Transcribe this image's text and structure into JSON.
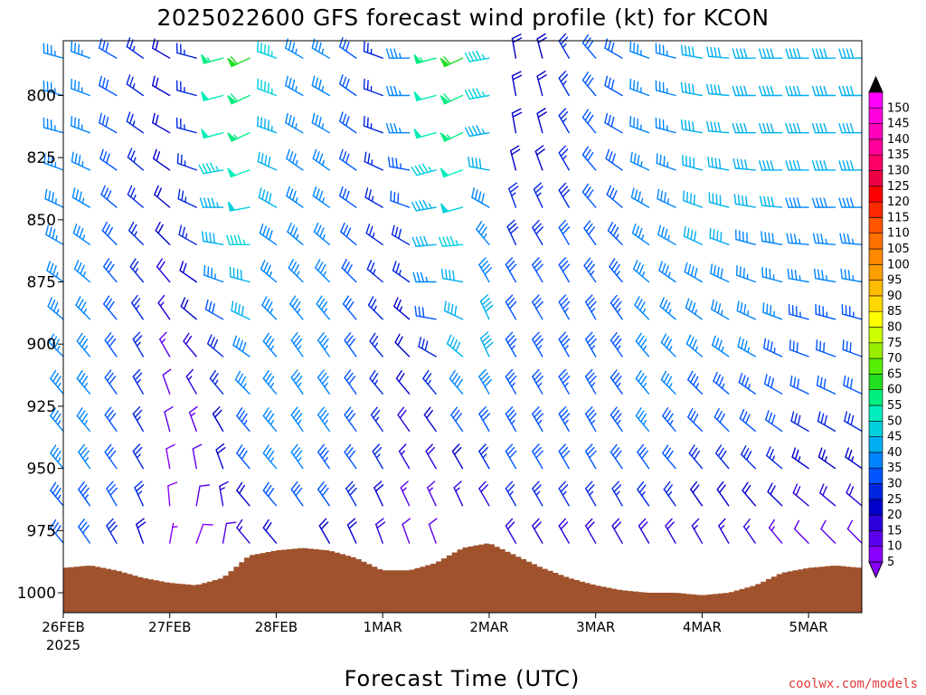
{
  "colors": {
    "terrain": "#a0522d",
    "credit": "#e23a3a"
  },
  "chart_data": {
    "type": "wind-barb-time-height",
    "title": "2025022600 GFS forecast wind profile (kt) for KCON",
    "xlabel": "Forecast Time (UTC)",
    "credit": "coolwx.com/models",
    "y_axis": {
      "label": "",
      "unit": "hPa",
      "inverted": true,
      "range": [
        778,
        1008
      ],
      "ticks": [
        "800",
        "825",
        "850",
        "875",
        "900",
        "925",
        "950",
        "975",
        "1000"
      ]
    },
    "x_axis": {
      "range_days": [
        0,
        7.5
      ],
      "ticks": [
        {
          "day": 0,
          "label": "26FEB",
          "sublabel": "2025"
        },
        {
          "day": 1,
          "label": "27FEB",
          "sublabel": ""
        },
        {
          "day": 2,
          "label": "28FEB",
          "sublabel": ""
        },
        {
          "day": 3,
          "label": "1MAR",
          "sublabel": ""
        },
        {
          "day": 4,
          "label": "2MAR",
          "sublabel": ""
        },
        {
          "day": 5,
          "label": "3MAR",
          "sublabel": ""
        },
        {
          "day": 6,
          "label": "4MAR",
          "sublabel": ""
        },
        {
          "day": 7,
          "label": "5MAR",
          "sublabel": ""
        }
      ]
    },
    "colorbar": {
      "levels": [
        "5",
        "10",
        "15",
        "20",
        "25",
        "30",
        "35",
        "40",
        "45",
        "50",
        "55",
        "60",
        "65",
        "70",
        "75",
        "80",
        "85",
        "90",
        "95",
        "100",
        "105",
        "110",
        "115",
        "120",
        "125",
        "130",
        "135",
        "140",
        "145",
        "150"
      ],
      "colors": [
        "#8800ff",
        "#5a00ee",
        "#2d00dd",
        "#0000cc",
        "#0026e0",
        "#0055ff",
        "#0084ff",
        "#00b0f0",
        "#00d0dd",
        "#00eebb",
        "#00ee80",
        "#22dd22",
        "#55ee00",
        "#99ee00",
        "#ccff00",
        "#ffff00",
        "#ffd800",
        "#ffbb00",
        "#ff9e00",
        "#ff8a00",
        "#ff7200",
        "#ff5500",
        "#ff2800",
        "#ff0000",
        "#ee0044",
        "#ff0066",
        "#ff0099",
        "#ff00bb",
        "#ff00dd",
        "#ff00ff"
      ]
    },
    "surface_pressure": {
      "unit": "hPa",
      "time_days": [
        0,
        0.25,
        0.5,
        0.75,
        1,
        1.25,
        1.5,
        1.75,
        2,
        2.25,
        2.5,
        2.75,
        3,
        3.25,
        3.5,
        3.75,
        4,
        4.25,
        4.5,
        4.75,
        5,
        5.25,
        5.5,
        5.75,
        6,
        6.25,
        6.5,
        6.75,
        7,
        7.25,
        7.5
      ],
      "values": [
        990,
        989,
        991,
        994,
        996,
        997,
        994,
        985,
        983,
        982,
        983,
        986,
        991,
        991,
        988,
        982,
        980,
        985,
        990,
        994,
        997,
        999,
        1000,
        1000,
        1001,
        1000,
        997,
        992,
        990,
        989,
        990
      ]
    },
    "wind_barbs": {
      "levels_hPa": [
        785,
        800,
        815,
        830,
        845,
        860,
        875,
        890,
        905,
        920,
        935,
        950,
        965,
        980
      ],
      "time_days": [
        0,
        0.25,
        0.5,
        0.75,
        1,
        1.25,
        1.5,
        1.75,
        2,
        2.25,
        2.5,
        2.75,
        3,
        3.25,
        3.5,
        3.75,
        4,
        4.25,
        4.5,
        4.75,
        5,
        5.25,
        5.5,
        5.75,
        6,
        6.25,
        6.5,
        6.75,
        7,
        7.25,
        7.5
      ],
      "direction_deg": [
        [
          285,
          290,
          300,
          305,
          300,
          285,
          255,
          245,
          290,
          300,
          300,
          305,
          290,
          270,
          255,
          245,
          260,
          350,
          345,
          330,
          320,
          300,
          290,
          285,
          280,
          275,
          270,
          270,
          270,
          270,
          270
        ],
        [
          285,
          290,
          300,
          305,
          300,
          285,
          255,
          245,
          290,
          300,
          300,
          305,
          290,
          270,
          255,
          245,
          260,
          350,
          345,
          330,
          320,
          300,
          290,
          285,
          280,
          275,
          270,
          270,
          270,
          270,
          270
        ],
        [
          285,
          290,
          300,
          305,
          300,
          285,
          255,
          245,
          290,
          300,
          300,
          305,
          290,
          270,
          255,
          245,
          260,
          350,
          345,
          330,
          320,
          300,
          290,
          285,
          280,
          275,
          270,
          270,
          270,
          270,
          270
        ],
        [
          290,
          295,
          305,
          310,
          305,
          290,
          260,
          250,
          295,
          305,
          305,
          305,
          295,
          280,
          255,
          250,
          280,
          345,
          340,
          330,
          320,
          305,
          295,
          290,
          285,
          280,
          275,
          270,
          270,
          270,
          270
        ],
        [
          295,
          300,
          310,
          310,
          310,
          295,
          270,
          260,
          300,
          305,
          305,
          305,
          300,
          290,
          260,
          255,
          300,
          340,
          335,
          330,
          320,
          310,
          300,
          295,
          290,
          285,
          280,
          275,
          270,
          270,
          270
        ],
        [
          300,
          305,
          315,
          315,
          315,
          300,
          280,
          270,
          305,
          310,
          310,
          310,
          305,
          300,
          265,
          265,
          320,
          335,
          330,
          330,
          325,
          315,
          305,
          300,
          295,
          290,
          285,
          280,
          275,
          275,
          275
        ],
        [
          305,
          310,
          320,
          320,
          320,
          305,
          290,
          285,
          310,
          315,
          315,
          315,
          310,
          305,
          270,
          280,
          330,
          330,
          330,
          330,
          325,
          320,
          310,
          305,
          300,
          295,
          290,
          285,
          280,
          280,
          280
        ],
        [
          310,
          315,
          320,
          325,
          325,
          310,
          300,
          295,
          315,
          320,
          320,
          320,
          315,
          310,
          280,
          295,
          335,
          330,
          330,
          330,
          330,
          325,
          315,
          310,
          305,
          300,
          295,
          290,
          285,
          285,
          285
        ],
        [
          315,
          320,
          325,
          330,
          330,
          320,
          310,
          305,
          320,
          325,
          325,
          325,
          320,
          315,
          300,
          310,
          335,
          330,
          330,
          330,
          330,
          325,
          320,
          315,
          310,
          305,
          300,
          295,
          290,
          290,
          290
        ],
        [
          320,
          320,
          325,
          330,
          340,
          330,
          320,
          315,
          320,
          325,
          325,
          325,
          320,
          320,
          320,
          320,
          330,
          330,
          330,
          330,
          330,
          325,
          320,
          315,
          315,
          310,
          305,
          300,
          295,
          295,
          295
        ],
        [
          320,
          320,
          325,
          330,
          345,
          340,
          330,
          320,
          320,
          325,
          325,
          325,
          325,
          325,
          325,
          325,
          330,
          330,
          330,
          330,
          330,
          325,
          320,
          320,
          315,
          315,
          310,
          305,
          300,
          300,
          300
        ],
        [
          320,
          325,
          325,
          330,
          350,
          350,
          340,
          320,
          320,
          325,
          325,
          325,
          330,
          330,
          330,
          330,
          330,
          330,
          330,
          330,
          330,
          325,
          325,
          320,
          320,
          320,
          315,
          310,
          305,
          305,
          305
        ],
        [
          320,
          325,
          330,
          335,
          355,
          10,
          350,
          320,
          320,
          325,
          325,
          330,
          335,
          335,
          335,
          335,
          330,
          330,
          330,
          330,
          330,
          330,
          325,
          325,
          325,
          325,
          320,
          315,
          310,
          310,
          310
        ],
        [
          320,
          325,
          330,
          340,
          10,
          20,
          10,
          320,
          320,
          325,
          330,
          335,
          340,
          340,
          340,
          340,
          330,
          330,
          330,
          330,
          330,
          330,
          330,
          330,
          330,
          330,
          325,
          320,
          315,
          315,
          315
        ]
      ],
      "speed_kt": [
        [
          35,
          35,
          30,
          25,
          20,
          25,
          55,
          60,
          45,
          35,
          35,
          30,
          25,
          35,
          55,
          60,
          45,
          20,
          20,
          25,
          30,
          30,
          35,
          35,
          40,
          40,
          40,
          40,
          40,
          40,
          40
        ],
        [
          35,
          35,
          30,
          25,
          20,
          25,
          52,
          58,
          45,
          35,
          35,
          30,
          25,
          35,
          52,
          58,
          45,
          20,
          20,
          25,
          30,
          30,
          35,
          35,
          40,
          40,
          40,
          40,
          40,
          40,
          40
        ],
        [
          35,
          35,
          30,
          25,
          20,
          25,
          50,
          55,
          43,
          35,
          35,
          30,
          25,
          35,
          50,
          55,
          43,
          20,
          20,
          25,
          30,
          30,
          35,
          35,
          40,
          40,
          40,
          40,
          40,
          40,
          40
        ],
        [
          35,
          35,
          30,
          25,
          20,
          25,
          47,
          52,
          42,
          35,
          35,
          30,
          25,
          33,
          47,
          52,
          40,
          22,
          22,
          25,
          30,
          30,
          35,
          35,
          40,
          40,
          40,
          40,
          40,
          40,
          40
        ],
        [
          35,
          35,
          30,
          25,
          20,
          25,
          44,
          49,
          40,
          35,
          35,
          30,
          25,
          30,
          44,
          48,
          38,
          25,
          25,
          28,
          30,
          32,
          35,
          35,
          40,
          40,
          40,
          40,
          38,
          38,
          38
        ],
        [
          35,
          35,
          30,
          25,
          20,
          25,
          40,
          45,
          38,
          35,
          35,
          30,
          25,
          28,
          40,
          45,
          36,
          28,
          28,
          30,
          32,
          33,
          35,
          35,
          40,
          40,
          38,
          38,
          36,
          36,
          36
        ],
        [
          35,
          35,
          30,
          25,
          18,
          22,
          36,
          42,
          37,
          35,
          35,
          30,
          25,
          26,
          36,
          42,
          38,
          30,
          30,
          32,
          33,
          33,
          35,
          35,
          38,
          38,
          36,
          36,
          35,
          35,
          35
        ],
        [
          35,
          35,
          30,
          25,
          16,
          20,
          32,
          40,
          36,
          35,
          35,
          30,
          25,
          24,
          32,
          42,
          40,
          32,
          32,
          33,
          33,
          33,
          35,
          35,
          36,
          36,
          35,
          35,
          33,
          33,
          33
        ],
        [
          35,
          35,
          30,
          25,
          14,
          18,
          28,
          38,
          36,
          35,
          35,
          30,
          25,
          22,
          28,
          42,
          40,
          33,
          33,
          33,
          33,
          33,
          35,
          35,
          35,
          35,
          35,
          33,
          32,
          32,
          32
        ],
        [
          35,
          35,
          30,
          25,
          12,
          16,
          25,
          36,
          36,
          35,
          35,
          30,
          25,
          20,
          25,
          38,
          38,
          33,
          33,
          33,
          33,
          33,
          35,
          35,
          33,
          33,
          33,
          32,
          30,
          30,
          30
        ],
        [
          35,
          35,
          30,
          25,
          10,
          14,
          22,
          34,
          35,
          35,
          35,
          30,
          25,
          18,
          22,
          30,
          32,
          33,
          33,
          33,
          33,
          33,
          35,
          33,
          32,
          32,
          32,
          30,
          28,
          28,
          28
        ],
        [
          35,
          35,
          30,
          25,
          9,
          12,
          20,
          30,
          35,
          35,
          33,
          30,
          25,
          16,
          18,
          22,
          25,
          30,
          30,
          30,
          30,
          30,
          30,
          30,
          28,
          28,
          28,
          26,
          24,
          24,
          24
        ],
        [
          33,
          33,
          30,
          25,
          8,
          10,
          16,
          22,
          30,
          30,
          30,
          28,
          22,
          14,
          14,
          16,
          18,
          25,
          25,
          25,
          25,
          25,
          25,
          25,
          22,
          22,
          22,
          20,
          18,
          18,
          18
        ],
        [
          30,
          30,
          28,
          22,
          7,
          8,
          12,
          15,
          22,
          22,
          22,
          20,
          18,
          12,
          10,
          10,
          12,
          18,
          18,
          18,
          18,
          18,
          18,
          18,
          15,
          15,
          15,
          14,
          12,
          12,
          12
        ]
      ]
    }
  }
}
